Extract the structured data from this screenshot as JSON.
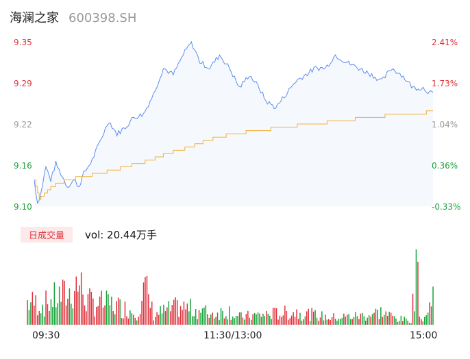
{
  "header": {
    "name": "海澜之家",
    "code": "600398.SH"
  },
  "colors": {
    "up": "#e0313b",
    "down": "#19a33a",
    "flat": "#999999",
    "price_line": "#5b8def",
    "avg_line": "#f2b134"
  },
  "price_axis": {
    "left_ticks": [
      {
        "label": "9.35",
        "cls": "up"
      },
      {
        "label": "9.29",
        "cls": "up"
      },
      {
        "label": "9.22",
        "cls": "flat"
      },
      {
        "label": "9.16",
        "cls": "down"
      },
      {
        "label": "9.10",
        "cls": "down"
      }
    ],
    "right_ticks": [
      {
        "label": "2.41%",
        "cls": "up"
      },
      {
        "label": "1.73%",
        "cls": "up"
      },
      {
        "label": "1.04%",
        "cls": "flat"
      },
      {
        "label": "0.36%",
        "cls": "down"
      },
      {
        "label": "-0.33%",
        "cls": "down"
      }
    ]
  },
  "volume": {
    "tag": "日成交量",
    "label": "vol: 20.44万手"
  },
  "time_axis": {
    "start": "09:30",
    "mid": "11:30/13:00",
    "end": "15:00"
  },
  "chart_data": {
    "type": "line",
    "ylim": [
      9.1,
      9.35
    ],
    "xlabel": "",
    "ylabel": "",
    "price_keypoints": [
      [
        0,
        9.14
      ],
      [
        2,
        9.105
      ],
      [
        4,
        9.12
      ],
      [
        7,
        9.16
      ],
      [
        10,
        9.14
      ],
      [
        13,
        9.165
      ],
      [
        16,
        9.15
      ],
      [
        20,
        9.13
      ],
      [
        24,
        9.14
      ],
      [
        27,
        9.13
      ],
      [
        30,
        9.15
      ],
      [
        35,
        9.17
      ],
      [
        40,
        9.2
      ],
      [
        45,
        9.23
      ],
      [
        50,
        9.21
      ],
      [
        55,
        9.22
      ],
      [
        60,
        9.235
      ],
      [
        66,
        9.24
      ],
      [
        72,
        9.27
      ],
      [
        78,
        9.31
      ],
      [
        84,
        9.3
      ],
      [
        90,
        9.33
      ],
      [
        95,
        9.35
      ],
      [
        100,
        9.32
      ],
      [
        106,
        9.31
      ],
      [
        112,
        9.33
      ],
      [
        118,
        9.31
      ],
      [
        124,
        9.28
      ],
      [
        130,
        9.3
      ],
      [
        136,
        9.28
      ],
      [
        140,
        9.26
      ],
      [
        146,
        9.25
      ],
      [
        152,
        9.27
      ],
      [
        158,
        9.29
      ],
      [
        164,
        9.3
      ],
      [
        170,
        9.31
      ],
      [
        176,
        9.31
      ],
      [
        182,
        9.33
      ],
      [
        188,
        9.32
      ],
      [
        196,
        9.31
      ],
      [
        204,
        9.3
      ],
      [
        210,
        9.29
      ],
      [
        216,
        9.31
      ],
      [
        222,
        9.3
      ],
      [
        229,
        9.28
      ],
      [
        235,
        9.28
      ],
      [
        241,
        9.27
      ]
    ],
    "avg_keypoints": [
      [
        0,
        9.14
      ],
      [
        3,
        9.11
      ],
      [
        10,
        9.13
      ],
      [
        20,
        9.14
      ],
      [
        40,
        9.15
      ],
      [
        55,
        9.16
      ],
      [
        70,
        9.17
      ],
      [
        80,
        9.18
      ],
      [
        94,
        9.19
      ],
      [
        104,
        9.2
      ],
      [
        120,
        9.21
      ],
      [
        150,
        9.22
      ],
      [
        185,
        9.23
      ],
      [
        220,
        9.24
      ],
      [
        236,
        9.24
      ],
      [
        238,
        9.245
      ],
      [
        241,
        9.245
      ]
    ],
    "volume_keypoints": [
      [
        0,
        45
      ],
      [
        10,
        40
      ],
      [
        18,
        55
      ],
      [
        25,
        60
      ],
      [
        30,
        85
      ],
      [
        36,
        45
      ],
      [
        50,
        40
      ],
      [
        65,
        25
      ],
      [
        70,
        72
      ],
      [
        75,
        20
      ],
      [
        90,
        35
      ],
      [
        100,
        30
      ],
      [
        110,
        22
      ],
      [
        120,
        28
      ],
      [
        125,
        15
      ],
      [
        140,
        20
      ],
      [
        160,
        25
      ],
      [
        180,
        14
      ],
      [
        200,
        18
      ],
      [
        210,
        25
      ],
      [
        220,
        12
      ],
      [
        228,
        8
      ],
      [
        231,
        108
      ],
      [
        234,
        10
      ],
      [
        238,
        22
      ],
      [
        241,
        62
      ]
    ],
    "volume_max": 108
  }
}
